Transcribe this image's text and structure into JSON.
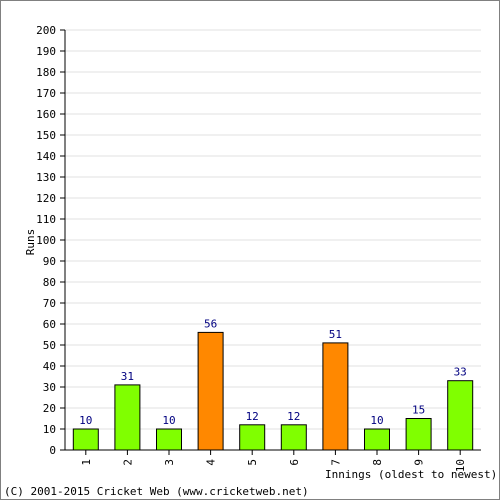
{
  "chart_data": {
    "type": "bar",
    "title": "",
    "xlabel": "Innings (oldest to newest)",
    "ylabel": "Runs",
    "categories": [
      "1",
      "2",
      "3",
      "4",
      "5",
      "6",
      "7",
      "8",
      "9",
      "10"
    ],
    "values": [
      10,
      31,
      10,
      56,
      12,
      12,
      51,
      10,
      15,
      33
    ],
    "bar_colors": [
      "#80ff00",
      "#80ff00",
      "#80ff00",
      "#ff8800",
      "#80ff00",
      "#80ff00",
      "#ff8800",
      "#80ff00",
      "#80ff00",
      "#80ff00"
    ],
    "ylim": [
      0,
      200
    ],
    "ytick_step": 10,
    "grid": true,
    "data_label_color": "#000080"
  },
  "footer": {
    "copyright": "(C) 2001-2015 Cricket Web (www.cricketweb.net)"
  }
}
